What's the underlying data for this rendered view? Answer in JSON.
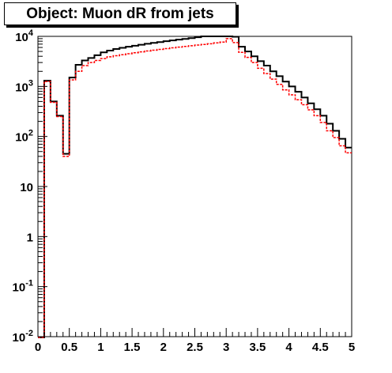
{
  "chart_data": {
    "type": "line",
    "title": "Object: Muon dR from jets",
    "xlabel": "",
    "ylabel": "",
    "xlim": [
      0,
      5
    ],
    "ylim": [
      0.01,
      10000
    ],
    "log_y": true,
    "bin_width": 0.1,
    "x_tick_labels": [
      "0",
      "0.5",
      "1",
      "1.5",
      "2",
      "2.5",
      "3",
      "3.5",
      "4",
      "4.5",
      "5"
    ],
    "y_tick_labels": [
      {
        "base": "10",
        "exp": "-2"
      },
      {
        "base": "10",
        "exp": "-1"
      },
      {
        "base": "1",
        "exp": ""
      },
      {
        "base": "10",
        "exp": ""
      },
      {
        "base": "10",
        "exp": "2"
      },
      {
        "base": "10",
        "exp": "3"
      },
      {
        "base": "10",
        "exp": "4"
      }
    ],
    "series": [
      {
        "color": "#000000",
        "style": "solid",
        "values": [
          0.005,
          1300,
          500,
          260,
          45,
          1500,
          2700,
          3300,
          3700,
          4200,
          4800,
          5200,
          5600,
          5900,
          6200,
          6500,
          6800,
          7100,
          7400,
          7700,
          8000,
          8300,
          8600,
          8900,
          9200,
          9600,
          10000,
          10200,
          10500,
          10700,
          10000,
          9800,
          6200,
          5000,
          4000,
          3200,
          2600,
          2000,
          1600,
          1250,
          1000,
          780,
          600,
          460,
          350,
          260,
          180,
          130,
          90,
          60
        ]
      },
      {
        "color": "#ff0000",
        "style": "dashed",
        "values": [
          0.005,
          1250,
          480,
          250,
          40,
          1350,
          2000,
          2600,
          3000,
          3300,
          3600,
          3900,
          4100,
          4300,
          4500,
          4700,
          4900,
          5100,
          5300,
          5500,
          5700,
          5900,
          6100,
          6300,
          6500,
          6700,
          6900,
          7100,
          7400,
          7700,
          9000,
          7500,
          4800,
          3800,
          3000,
          2300,
          1800,
          1400,
          1100,
          850,
          680,
          540,
          430,
          340,
          260,
          190,
          130,
          95,
          65,
          47
        ]
      }
    ]
  }
}
